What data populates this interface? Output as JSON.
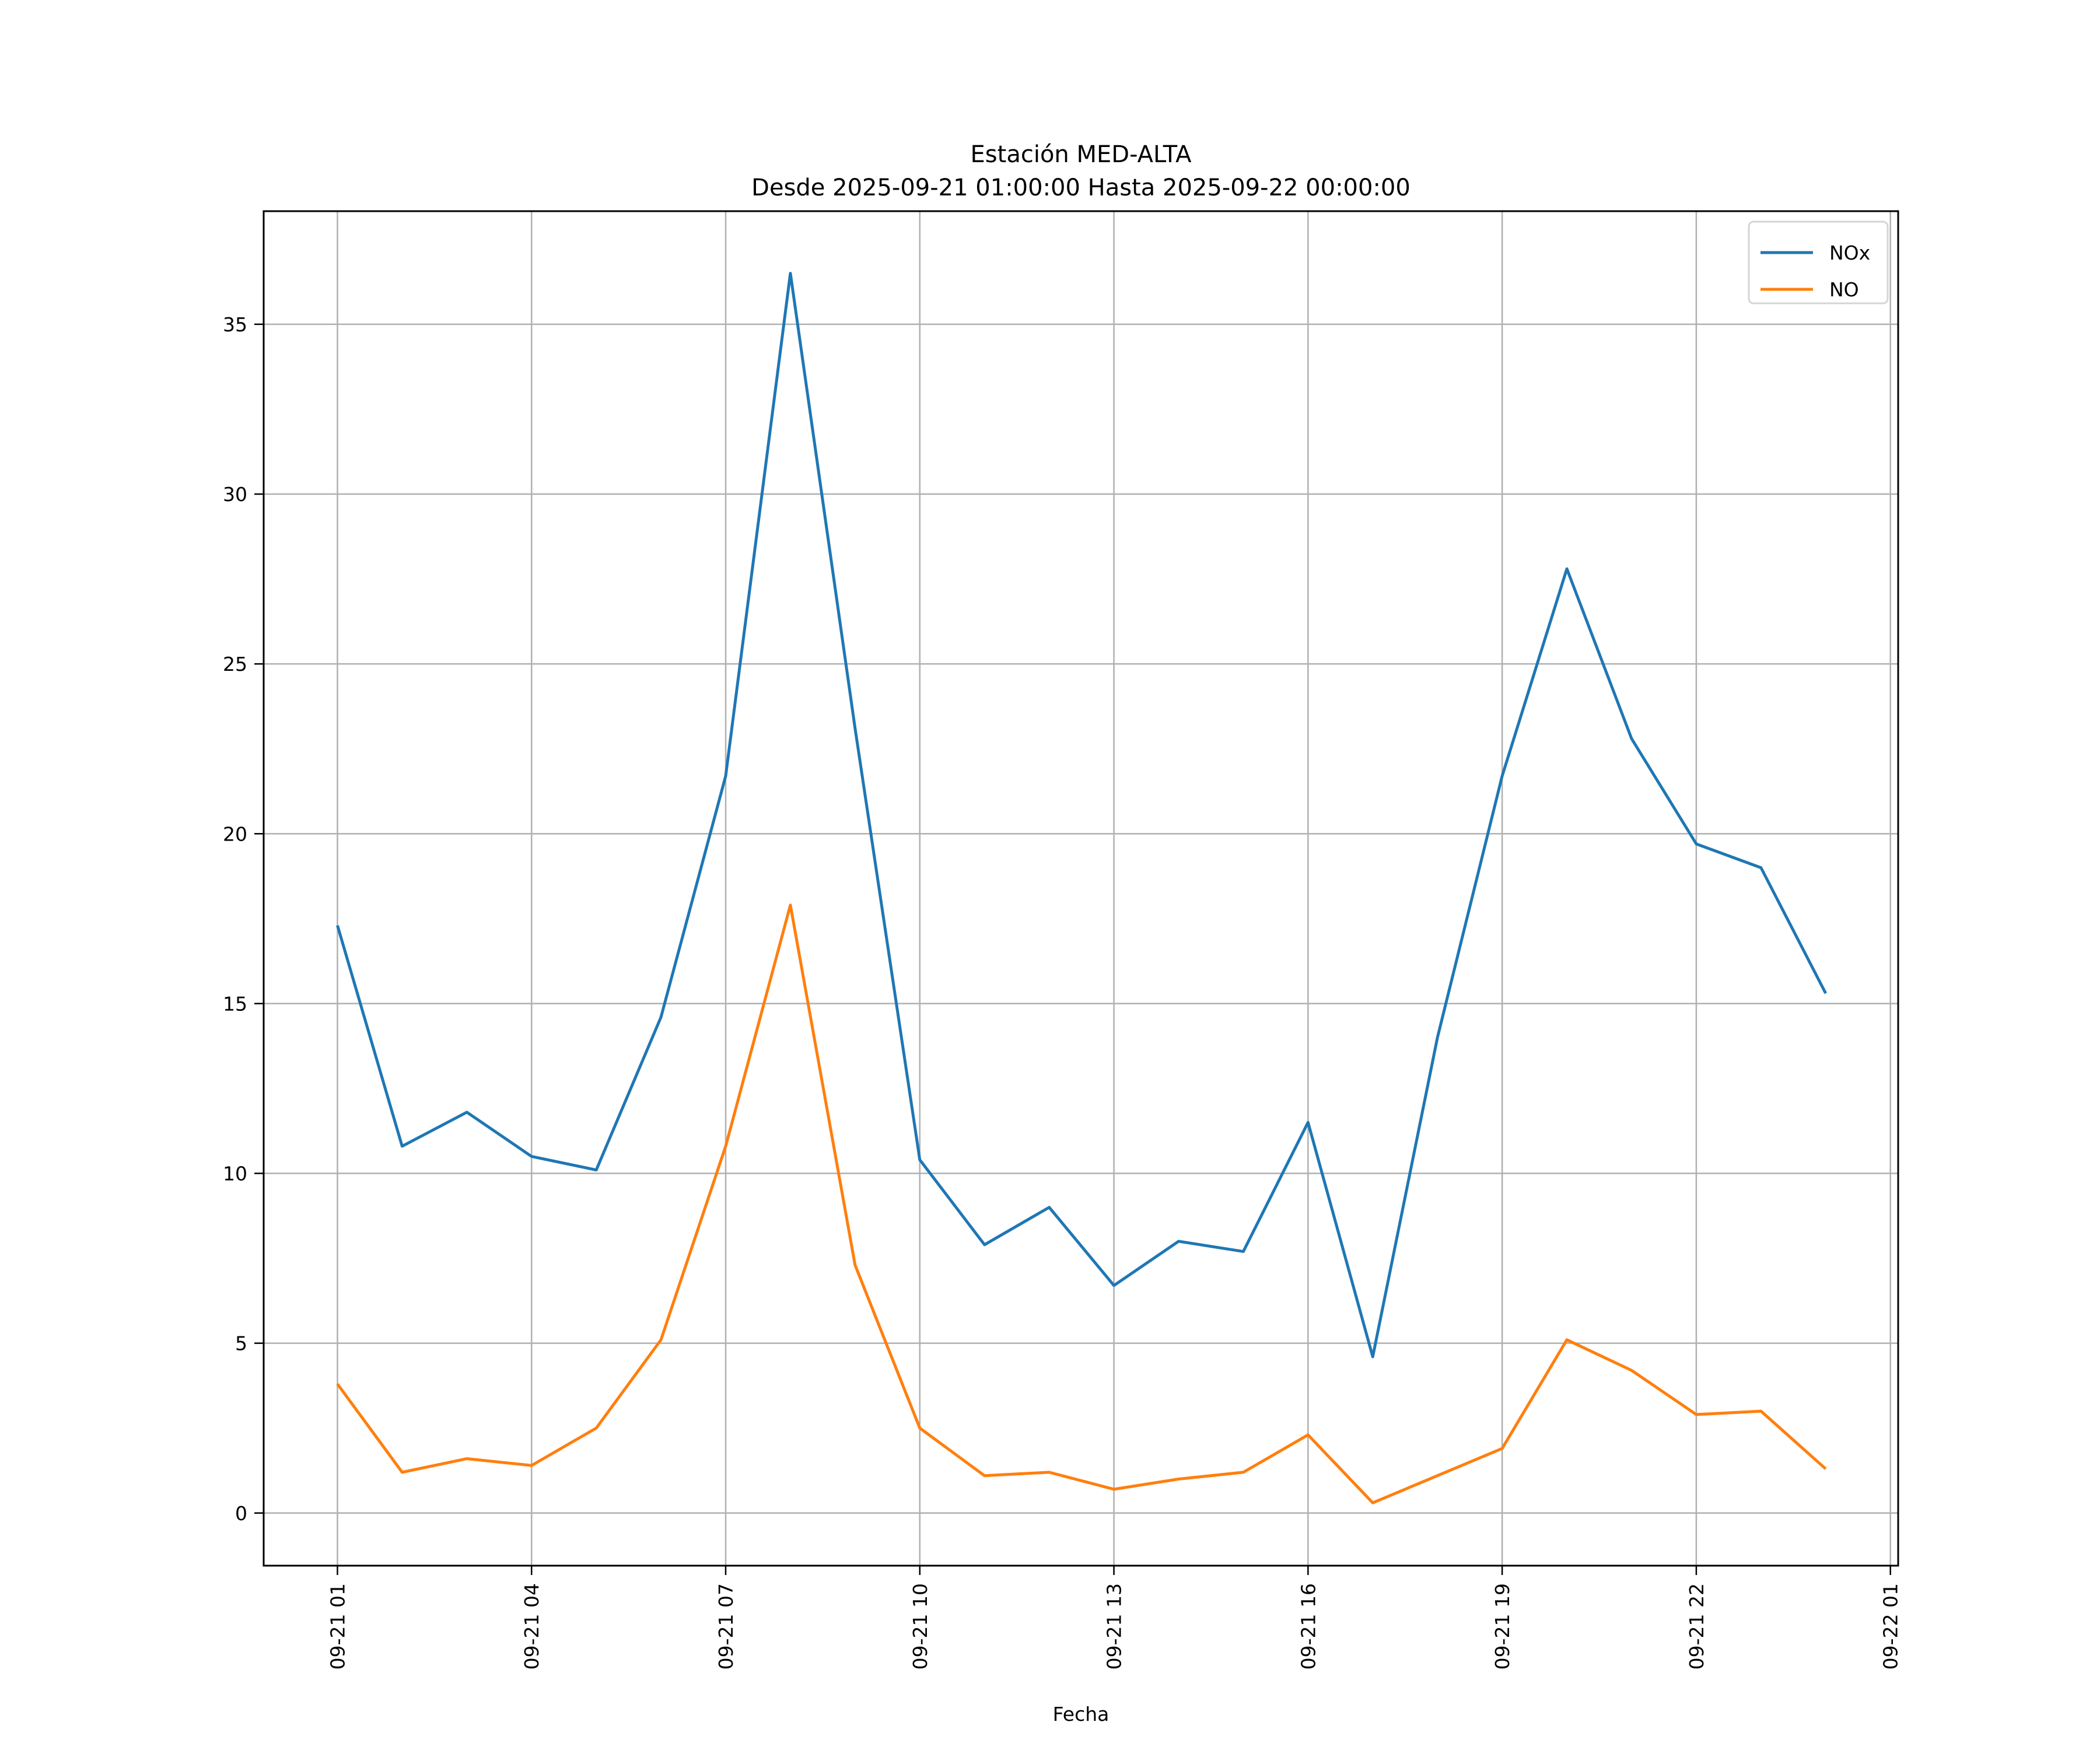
{
  "chart_data": {
    "type": "line",
    "title": "Estación MED-ALTA",
    "subtitle": "Desde 2025-09-21 01:00:00 Hasta 2025-09-22 00:00:00",
    "xlabel": "Fecha",
    "ylabel": "",
    "x_unit": "hours since 2025-09-21 01:00",
    "x": [
      0,
      1,
      2,
      3,
      4,
      5,
      6,
      7,
      8,
      9,
      10,
      11,
      12,
      13,
      14,
      15,
      16,
      17,
      18,
      19,
      20,
      21,
      22,
      23
    ],
    "xlim": [
      -1.14,
      24.12
    ],
    "ylim": [
      -1.55,
      38.33
    ],
    "xticks": [
      0,
      3,
      6,
      9,
      12,
      15,
      18,
      21,
      24
    ],
    "xtick_labels": [
      "09-21 01",
      "09-21 04",
      "09-21 07",
      "09-21 10",
      "09-21 13",
      "09-21 16",
      "09-21 19",
      "09-21 22",
      "09-22 01"
    ],
    "yticks": [
      0,
      5,
      10,
      15,
      20,
      25,
      30,
      35
    ],
    "ytick_labels": [
      "0",
      "5",
      "10",
      "15",
      "20",
      "25",
      "30",
      "35"
    ],
    "grid": true,
    "legend_position": "top-right",
    "series": [
      {
        "name": "NOx",
        "color": "#1f77b4",
        "values": [
          17.3,
          10.8,
          11.8,
          10.5,
          10.1,
          14.6,
          21.7,
          36.5,
          23.1,
          10.4,
          7.9,
          9.0,
          6.7,
          8.0,
          7.7,
          11.5,
          4.6,
          14.0,
          21.7,
          27.8,
          22.8,
          19.7,
          19.0,
          15.3
        ]
      },
      {
        "name": "NO",
        "color": "#ff7f0e",
        "values": [
          3.8,
          1.2,
          1.6,
          1.4,
          2.5,
          5.1,
          10.8,
          17.9,
          7.3,
          2.5,
          1.1,
          1.2,
          0.7,
          1.0,
          1.2,
          2.3,
          0.3,
          1.1,
          1.9,
          5.1,
          4.2,
          2.9,
          3.0,
          1.3
        ]
      }
    ]
  }
}
